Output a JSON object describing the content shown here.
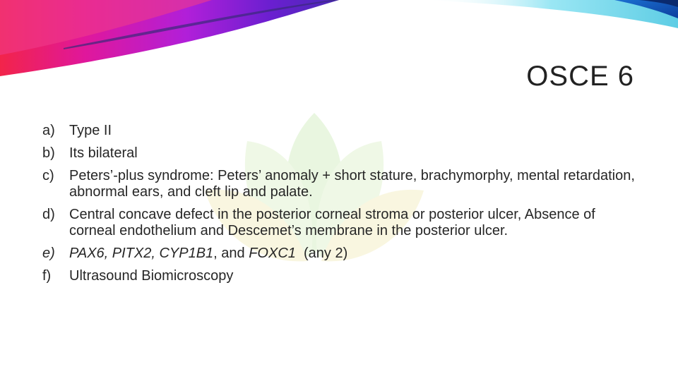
{
  "slide": {
    "title": "OSCE 6",
    "items": [
      {
        "marker": "a)",
        "text": "Type II"
      },
      {
        "marker": "b)",
        "text": "Its bilateral"
      },
      {
        "marker": "c)",
        "text": "Peters’-plus syndrome: Peters’ anomaly + short stature, brachymorphy, mental retardation, abnormal ears, and  cleft lip and palate."
      },
      {
        "marker": "d)",
        "text": "Central concave defect in the posterior corneal stroma or posterior ulcer, Absence of corneal endothelium and Descemet’s membrane in the posterior ulcer."
      },
      {
        "marker": "e)",
        "genes": "PAX6, PITX2, CYP1B1",
        "conj": ", and ",
        "gene_last": "FOXC1",
        "note": "  (any 2)"
      },
      {
        "marker": "f)",
        "text": "Ultrasound Biomicroscopy"
      }
    ]
  },
  "colors": {
    "ribbon_magenta": "#e0179b",
    "ribbon_purple": "#6a1fd0",
    "ribbon_red": "#f2244a",
    "ribbon_teal": "#18b7d9",
    "watermark_green": "#d8f0c8",
    "watermark_yellow": "#fbf3c5"
  }
}
